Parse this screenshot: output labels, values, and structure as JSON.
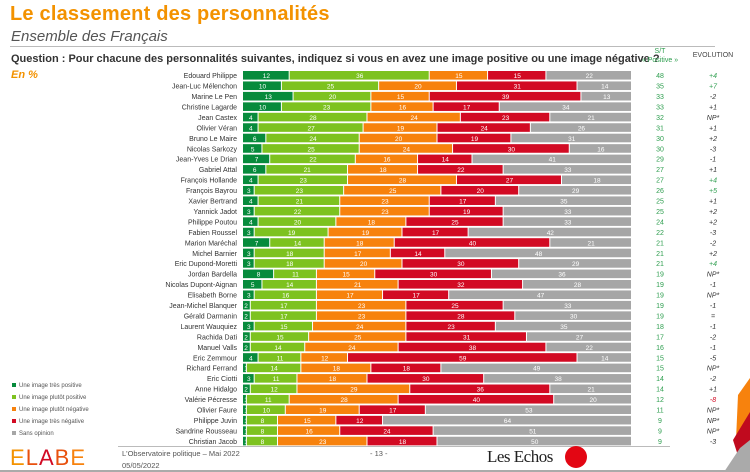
{
  "header": {
    "title": "Le classement des personnalités",
    "subtitle": "Ensemble des Français",
    "question": "Question : Pour chacune des personnalités suivantes, indiquez si vous en avez une image positive ou une image négative ?",
    "unit": "En %",
    "col_st_line1": "S/T",
    "col_st_line2": "« Positive »",
    "col_evolution": "EVOLUTION"
  },
  "colors": {
    "tres_positive": "#078b3c",
    "plutot_positive": "#7dc21f",
    "plutot_negative": "#f7820d",
    "tres_negative": "#d20a23",
    "sans_opinion": "#a6a6a6",
    "title_orange": "#f39200",
    "st_green": "#2e9e4f"
  },
  "legend": [
    {
      "label": "Une image très positive",
      "key": "tres_positive"
    },
    {
      "label": "Une image plutôt positive",
      "key": "plutot_positive"
    },
    {
      "label": "Une image plutôt négative",
      "key": "plutot_negative"
    },
    {
      "label": "Une image très négative",
      "key": "tres_negative"
    },
    {
      "label": "Sans opinion",
      "key": "sans_opinion"
    }
  ],
  "chart_data": {
    "type": "bar",
    "orientation": "horizontal-stacked-100",
    "title": "Le classement des personnalités",
    "subtitle": "Ensemble des Français",
    "unit": "%",
    "series_names": [
      "Une image très positive",
      "Une image plutôt positive",
      "Une image plutôt négative",
      "Une image très négative",
      "Sans opinion"
    ],
    "legend_position": "bottom-left",
    "categories": [
      "Edouard Philippe",
      "Jean-Luc Mélenchon",
      "Marine Le Pen",
      "Christine Lagarde",
      "Jean Castex",
      "Olivier Véran",
      "Bruno Le Maire",
      "Nicolas Sarkozy",
      "Jean-Yves Le Drian",
      "Gabriel Attal",
      "François Hollande",
      "François Bayrou",
      "Xavier Bertrand",
      "Yannick Jadot",
      "Philippe Poutou",
      "Fabien Roussel",
      "Marion Maréchal",
      "Michel Barnier",
      "Eric Dupond-Moretti",
      "Jordan Bardella",
      "Nicolas Dupont-Aignan",
      "Elisabeth Borne",
      "Jean-Michel Blanquer",
      "Gérald Darmanin",
      "Laurent Wauquiez",
      "Rachida Dati",
      "Manuel Valls",
      "Eric Zemmour",
      "Richard Ferrand",
      "Eric Ciotti",
      "Anne Hidalgo",
      "Valérie Pécresse",
      "Olivier Faure",
      "Philippe Juvin",
      "Sandrine Rousseau",
      "Christian Jacob"
    ],
    "rows": [
      {
        "name": "Edouard Philippe",
        "values": [
          12,
          36,
          15,
          15,
          22
        ],
        "st_positive": "48",
        "evolution": "+4",
        "evo_color": "green"
      },
      {
        "name": "Jean-Luc Mélenchon",
        "values": [
          10,
          25,
          20,
          31,
          14
        ],
        "st_positive": "35",
        "evolution": "+7",
        "evo_color": "green"
      },
      {
        "name": "Marine Le Pen",
        "values": [
          13,
          20,
          15,
          39,
          13
        ],
        "st_positive": "33",
        "evolution": "-2",
        "evo_color": "dark"
      },
      {
        "name": "Christine Lagarde",
        "values": [
          10,
          23,
          16,
          17,
          34
        ],
        "st_positive": "33",
        "evolution": "+1",
        "evo_color": "dark"
      },
      {
        "name": "Jean Castex",
        "values": [
          4,
          28,
          24,
          23,
          21
        ],
        "st_positive": "32",
        "evolution": "NP*",
        "evo_color": "dark"
      },
      {
        "name": "Olivier Véran",
        "values": [
          4,
          27,
          19,
          24,
          26
        ],
        "st_positive": "31",
        "evolution": "+1",
        "evo_color": "dark"
      },
      {
        "name": "Bruno Le Maire",
        "values": [
          6,
          24,
          20,
          19,
          31
        ],
        "st_positive": "30",
        "evolution": "+2",
        "evo_color": "dark"
      },
      {
        "name": "Nicolas Sarkozy",
        "values": [
          5,
          25,
          24,
          30,
          16
        ],
        "st_positive": "30",
        "evolution": "-3",
        "evo_color": "dark"
      },
      {
        "name": "Jean-Yves Le Drian",
        "values": [
          7,
          22,
          16,
          14,
          41
        ],
        "st_positive": "29",
        "evolution": "-1",
        "evo_color": "dark"
      },
      {
        "name": "Gabriel Attal",
        "values": [
          6,
          21,
          18,
          22,
          33
        ],
        "st_positive": "27",
        "evolution": "+1",
        "evo_color": "dark"
      },
      {
        "name": "François Hollande",
        "values": [
          4,
          23,
          28,
          27,
          18
        ],
        "st_positive": "27",
        "evolution": "+4",
        "evo_color": "green"
      },
      {
        "name": "François Bayrou",
        "values": [
          3,
          23,
          25,
          20,
          29
        ],
        "st_positive": "26",
        "evolution": "+5",
        "evo_color": "green"
      },
      {
        "name": "Xavier Bertrand",
        "values": [
          4,
          21,
          23,
          17,
          35
        ],
        "st_positive": "25",
        "evolution": "+1",
        "evo_color": "dark"
      },
      {
        "name": "Yannick Jadot",
        "values": [
          3,
          22,
          23,
          19,
          33
        ],
        "st_positive": "25",
        "evolution": "+2",
        "evo_color": "dark"
      },
      {
        "name": "Philippe Poutou",
        "values": [
          4,
          20,
          18,
          25,
          33
        ],
        "st_positive": "24",
        "evolution": "+2",
        "evo_color": "dark"
      },
      {
        "name": "Fabien Roussel",
        "values": [
          3,
          19,
          19,
          17,
          42
        ],
        "st_positive": "22",
        "evolution": "-3",
        "evo_color": "dark"
      },
      {
        "name": "Marion Maréchal",
        "values": [
          7,
          14,
          18,
          40,
          21
        ],
        "st_positive": "21",
        "evolution": "-2",
        "evo_color": "dark"
      },
      {
        "name": "Michel Barnier",
        "values": [
          3,
          18,
          17,
          14,
          48
        ],
        "st_positive": "21",
        "evolution": "+2",
        "evo_color": "dark"
      },
      {
        "name": "Eric Dupond-Moretti",
        "values": [
          3,
          18,
          20,
          30,
          29
        ],
        "st_positive": "21",
        "evolution": "+4",
        "evo_color": "green"
      },
      {
        "name": "Jordan Bardella",
        "values": [
          8,
          11,
          15,
          30,
          36
        ],
        "st_positive": "19",
        "evolution": "NP*",
        "evo_color": "dark"
      },
      {
        "name": "Nicolas Dupont-Aignan",
        "values": [
          5,
          14,
          21,
          32,
          28
        ],
        "st_positive": "19",
        "evolution": "-1",
        "evo_color": "dark"
      },
      {
        "name": "Elisabeth Borne",
        "values": [
          3,
          16,
          17,
          17,
          47
        ],
        "st_positive": "19",
        "evolution": "NP*",
        "evo_color": "dark"
      },
      {
        "name": "Jean-Michel Blanquer",
        "values": [
          2,
          17,
          23,
          25,
          33
        ],
        "st_positive": "19",
        "evolution": "-1",
        "evo_color": "dark"
      },
      {
        "name": "Gérald Darmanin",
        "values": [
          2,
          17,
          23,
          28,
          30
        ],
        "st_positive": "19",
        "evolution": "=",
        "evo_color": "dark"
      },
      {
        "name": "Laurent Wauquiez",
        "values": [
          3,
          15,
          24,
          23,
          35
        ],
        "st_positive": "18",
        "evolution": "-1",
        "evo_color": "dark"
      },
      {
        "name": "Rachida Dati",
        "values": [
          2,
          15,
          25,
          31,
          27
        ],
        "st_positive": "17",
        "evolution": "-2",
        "evo_color": "dark"
      },
      {
        "name": "Manuel Valls",
        "values": [
          2,
          14,
          24,
          38,
          22
        ],
        "st_positive": "16",
        "evolution": "-1",
        "evo_color": "dark"
      },
      {
        "name": "Eric Zemmour",
        "values": [
          4,
          11,
          12,
          59,
          14
        ],
        "st_positive": "15",
        "evolution": "-5",
        "evo_color": "dark"
      },
      {
        "name": "Richard Ferrand",
        "values": [
          1,
          14,
          18,
          18,
          49
        ],
        "st_positive": "15",
        "evolution": "NP*",
        "evo_color": "dark"
      },
      {
        "name": "Eric Ciotti",
        "values": [
          3,
          11,
          18,
          30,
          38
        ],
        "st_positive": "14",
        "evolution": "-2",
        "evo_color": "dark"
      },
      {
        "name": "Anne Hidalgo",
        "values": [
          2,
          12,
          29,
          36,
          21
        ],
        "st_positive": "14",
        "evolution": "+1",
        "evo_color": "dark"
      },
      {
        "name": "Valérie Pécresse",
        "values": [
          1,
          11,
          28,
          40,
          20
        ],
        "st_positive": "12",
        "evolution": "-8",
        "evo_color": "red"
      },
      {
        "name": "Olivier Faure",
        "values": [
          1,
          10,
          19,
          17,
          53
        ],
        "st_positive": "11",
        "evolution": "NP*",
        "evo_color": "dark"
      },
      {
        "name": "Philippe Juvin",
        "values": [
          1,
          8,
          15,
          12,
          64
        ],
        "st_positive": "9",
        "evolution": "NP*",
        "evo_color": "dark"
      },
      {
        "name": "Sandrine Rousseau",
        "values": [
          1,
          8,
          16,
          24,
          51
        ],
        "st_positive": "9",
        "evolution": "NP*",
        "evo_color": "dark"
      },
      {
        "name": "Christian Jacob",
        "values": [
          1,
          8,
          23,
          18,
          50
        ],
        "st_positive": "9",
        "evolution": "-3",
        "evo_color": "dark"
      }
    ],
    "xlim": [
      0,
      100
    ],
    "grid": false
  },
  "footer": {
    "brand": "ELABE",
    "publication": "L'Observatoire politique – Mai 2022",
    "date": "05/05/2022",
    "page": "- 13 -",
    "partner": "Les Echos"
  }
}
